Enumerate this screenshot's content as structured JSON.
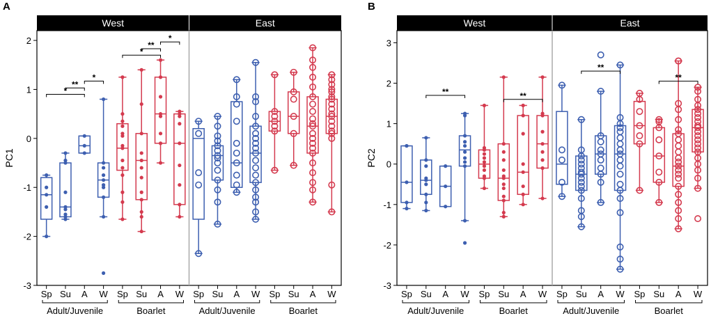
{
  "colors": {
    "blue": "#3d5fb0",
    "red": "#d43a4e",
    "header_bg": "#000000",
    "header_text": "#ffffff",
    "axis": "#000000",
    "divider": "#aaaaaa"
  },
  "chart_data": [
    {
      "type": "box",
      "panel_label": "A",
      "ylabel": "PC1",
      "ylim": [
        -3,
        2.2
      ],
      "yticks": [
        "2",
        "1",
        "0",
        "-1",
        "-2",
        "-3"
      ],
      "ytick_values": [
        2,
        1,
        0,
        -1,
        -2,
        -3
      ],
      "strip_labels": [
        "West",
        "East"
      ],
      "categories": [
        "Sp",
        "Su",
        "A",
        "W",
        "Sp",
        "Su",
        "A",
        "W",
        "Sp",
        "Su",
        "A",
        "W",
        "Sp",
        "Su",
        "A",
        "W"
      ],
      "group_labels": [
        "Adult/Juvenile",
        "Boarlet",
        "Adult/Juvenile",
        "Boarlet"
      ],
      "boxes": [
        {
          "region": "West",
          "age": "Adult/Juvenile",
          "season": "Sp",
          "color": "blue",
          "style": "filled",
          "min": -2.0,
          "q1": -1.65,
          "median": -1.15,
          "q3": -0.8,
          "max": -0.75,
          "points": [
            -0.75,
            -1.0,
            -1.15,
            -1.4,
            -2.0
          ]
        },
        {
          "region": "West",
          "age": "Adult/Juvenile",
          "season": "Su",
          "color": "blue",
          "style": "filled",
          "min": -1.65,
          "q1": -1.6,
          "median": -1.4,
          "q3": -0.5,
          "max": -0.3,
          "points": [
            -0.3,
            -0.45,
            -0.5,
            -1.1,
            -1.4,
            -1.45,
            -1.55,
            -1.6,
            -1.65
          ]
        },
        {
          "region": "West",
          "age": "Adult/Juvenile",
          "season": "A",
          "color": "blue",
          "style": "filled",
          "min": -0.3,
          "q1": -0.3,
          "median": -0.15,
          "q3": 0.05,
          "max": 0.05,
          "points": [
            0.05,
            -0.15,
            -0.3
          ]
        },
        {
          "region": "West",
          "age": "Adult/Juvenile",
          "season": "W",
          "color": "blue",
          "style": "filled",
          "min": -1.6,
          "q1": -1.2,
          "median": -0.85,
          "q3": -0.5,
          "max": 0.8,
          "points": [
            0.8,
            -0.5,
            -0.6,
            -0.75,
            -0.85,
            -0.95,
            -1.0,
            -1.2,
            -1.6,
            -2.75
          ]
        },
        {
          "region": "West",
          "age": "Boarlet",
          "season": "Sp",
          "color": "red",
          "style": "filled",
          "min": -1.65,
          "q1": -0.65,
          "median": -0.2,
          "q3": 0.3,
          "max": 1.25,
          "points": [
            1.25,
            0.5,
            0.35,
            0.25,
            0.1,
            0.05,
            -0.15,
            -0.2,
            -0.45,
            -0.6,
            -0.75,
            -1.1,
            -1.3,
            -1.65
          ]
        },
        {
          "region": "West",
          "age": "Boarlet",
          "season": "Su",
          "color": "red",
          "style": "filled",
          "min": -1.9,
          "q1": -1.25,
          "median": -0.45,
          "q3": 0.1,
          "max": 1.4,
          "points": [
            1.4,
            0.7,
            0.1,
            -0.3,
            -0.45,
            -0.6,
            -0.8,
            -1.1,
            -1.25,
            -1.5,
            -1.6,
            -1.9
          ]
        },
        {
          "region": "West",
          "age": "Boarlet",
          "season": "A",
          "color": "red",
          "style": "filled",
          "min": -0.5,
          "q1": -0.1,
          "median": 0.5,
          "q3": 1.25,
          "max": 1.6,
          "points": [
            1.6,
            1.25,
            0.85,
            0.5,
            0.45,
            0.1,
            -0.1,
            -0.5
          ]
        },
        {
          "region": "West",
          "age": "Boarlet",
          "season": "W",
          "color": "red",
          "style": "filled",
          "min": -1.6,
          "q1": -1.35,
          "median": -0.1,
          "q3": 0.5,
          "max": 0.55,
          "points": [
            0.55,
            0.5,
            0.45,
            0.3,
            -0.1,
            -0.55,
            -0.95,
            -1.35,
            -1.6
          ]
        },
        {
          "region": "East",
          "age": "Adult/Juvenile",
          "season": "Sp",
          "color": "blue",
          "style": "open",
          "min": -2.35,
          "q1": -1.65,
          "median": 0.0,
          "q3": 0.2,
          "max": 0.35,
          "points": [
            0.35,
            0.1,
            -0.7,
            -0.95,
            -2.35
          ]
        },
        {
          "region": "East",
          "age": "Adult/Juvenile",
          "season": "Su",
          "color": "blue",
          "style": "open",
          "min": -1.75,
          "q1": -0.85,
          "median": -0.35,
          "q3": -0.15,
          "max": 0.45,
          "points": [
            0.45,
            0.25,
            0.05,
            -0.05,
            -0.15,
            -0.25,
            -0.35,
            -0.4,
            -0.5,
            -0.65,
            -0.85,
            -1.05,
            -1.3,
            -1.75
          ]
        },
        {
          "region": "East",
          "age": "Adult/Juvenile",
          "season": "A",
          "color": "blue",
          "style": "open",
          "min": -1.1,
          "q1": -1.0,
          "median": -0.5,
          "q3": 0.75,
          "max": 1.2,
          "points": [
            1.2,
            0.85,
            0.7,
            0.35,
            -0.1,
            -0.3,
            -0.5,
            -0.75,
            -0.95,
            -1.1
          ]
        },
        {
          "region": "East",
          "age": "Adult/Juvenile",
          "season": "W",
          "color": "blue",
          "style": "open",
          "min": -1.65,
          "q1": -0.9,
          "median": -0.3,
          "q3": 0.25,
          "max": 1.55,
          "points": [
            1.55,
            0.85,
            0.75,
            0.45,
            0.25,
            0.1,
            0.0,
            -0.1,
            -0.2,
            -0.3,
            -0.45,
            -0.6,
            -0.75,
            -0.9,
            -1.05,
            -1.2,
            -1.3,
            -1.5,
            -1.65
          ]
        },
        {
          "region": "East",
          "age": "Boarlet",
          "season": "Sp",
          "color": "red",
          "style": "open",
          "min": -0.65,
          "q1": 0.15,
          "median": 0.35,
          "q3": 0.55,
          "max": 1.3,
          "points": [
            1.3,
            0.55,
            0.45,
            0.35,
            0.25,
            0.15,
            -0.65
          ]
        },
        {
          "region": "East",
          "age": "Boarlet",
          "season": "Su",
          "color": "red",
          "style": "open",
          "min": -0.55,
          "q1": 0.1,
          "median": 0.45,
          "q3": 0.95,
          "max": 1.35,
          "points": [
            1.35,
            0.95,
            0.8,
            0.45,
            0.1,
            -0.55
          ]
        },
        {
          "region": "East",
          "age": "Boarlet",
          "season": "A",
          "color": "red",
          "style": "open",
          "min": -1.3,
          "q1": -0.3,
          "median": 0.25,
          "q3": 0.85,
          "max": 1.85,
          "points": [
            1.85,
            1.6,
            1.45,
            1.25,
            1.05,
            0.85,
            0.7,
            0.55,
            0.4,
            0.3,
            0.25,
            0.1,
            0.0,
            -0.1,
            -0.2,
            -0.3,
            -0.5,
            -0.7,
            -0.9,
            -1.05,
            -1.3
          ]
        },
        {
          "region": "East",
          "age": "Boarlet",
          "season": "W",
          "color": "red",
          "style": "open",
          "min": -1.5,
          "q1": 0.1,
          "median": 0.45,
          "q3": 0.8,
          "max": 1.3,
          "points": [
            1.3,
            1.2,
            1.1,
            1.0,
            0.95,
            0.85,
            0.8,
            0.7,
            0.6,
            0.5,
            0.45,
            0.35,
            0.25,
            0.15,
            0.1,
            0.0,
            -0.95,
            -1.5
          ]
        }
      ],
      "significance": [
        {
          "from": 0,
          "to": 2,
          "y": 0.9,
          "label": "*"
        },
        {
          "from": 1,
          "to": 2,
          "y": 1.03,
          "label": "**"
        },
        {
          "from": 2,
          "to": 3,
          "y": 1.17,
          "label": "*"
        },
        {
          "from": 4,
          "to": 6,
          "y": 1.7,
          "label": "*"
        },
        {
          "from": 5,
          "to": 6,
          "y": 1.83,
          "label": "**"
        },
        {
          "from": 6,
          "to": 7,
          "y": 1.97,
          "label": "*"
        }
      ]
    },
    {
      "type": "box",
      "panel_label": "B",
      "ylabel": "PC2",
      "ylim": [
        -3,
        3.3
      ],
      "yticks": [
        "3",
        "2",
        "1",
        "0",
        "-1",
        "-2",
        "-3"
      ],
      "ytick_values": [
        3,
        2,
        1,
        0,
        -1,
        -2,
        -3
      ],
      "strip_labels": [
        "West",
        "East"
      ],
      "categories": [
        "Sp",
        "Su",
        "A",
        "W",
        "Sp",
        "Su",
        "A",
        "W",
        "Sp",
        "Su",
        "A",
        "W",
        "Sp",
        "Su",
        "A",
        "W"
      ],
      "group_labels": [
        "Adult/Juvenile",
        "Boarlet",
        "Adult/Juvenile",
        "Boarlet"
      ],
      "boxes": [
        {
          "region": "West",
          "age": "Adult/Juvenile",
          "season": "Sp",
          "color": "blue",
          "style": "filled",
          "min": -1.1,
          "q1": -0.95,
          "median": -0.45,
          "q3": 0.45,
          "max": 0.45,
          "points": [
            0.45,
            0.45,
            -0.45,
            -0.95,
            -1.1
          ]
        },
        {
          "region": "West",
          "age": "Adult/Juvenile",
          "season": "Su",
          "color": "blue",
          "style": "filled",
          "min": -1.15,
          "q1": -0.75,
          "median": -0.4,
          "q3": 0.1,
          "max": 0.65,
          "points": [
            0.65,
            0.1,
            -0.05,
            -0.35,
            -0.4,
            -0.5,
            -0.75,
            -0.95,
            -1.15
          ]
        },
        {
          "region": "West",
          "age": "Adult/Juvenile",
          "season": "A",
          "color": "blue",
          "style": "filled",
          "min": -1.05,
          "q1": -1.05,
          "median": -0.55,
          "q3": -0.05,
          "max": -0.05,
          "points": [
            -0.05,
            -0.55,
            -1.05
          ]
        },
        {
          "region": "West",
          "age": "Adult/Juvenile",
          "season": "W",
          "color": "blue",
          "style": "filled",
          "min": -1.4,
          "q1": -0.05,
          "median": 0.35,
          "q3": 0.7,
          "max": 1.25,
          "points": [
            1.25,
            1.2,
            0.7,
            0.55,
            0.45,
            0.3,
            0.15,
            0.05,
            -0.05,
            -1.4,
            -1.95
          ]
        },
        {
          "region": "West",
          "age": "Boarlet",
          "season": "Sp",
          "color": "red",
          "style": "filled",
          "min": -0.6,
          "q1": -0.35,
          "median": 0.0,
          "q3": 0.35,
          "max": 1.45,
          "points": [
            1.45,
            0.4,
            0.35,
            0.25,
            0.15,
            0.05,
            -0.05,
            -0.15,
            -0.3,
            -0.35,
            -0.6
          ]
        },
        {
          "region": "West",
          "age": "Boarlet",
          "season": "Su",
          "color": "red",
          "style": "filled",
          "min": -1.3,
          "q1": -0.9,
          "median": -0.35,
          "q3": 0.5,
          "max": 2.15,
          "points": [
            2.15,
            0.5,
            0.3,
            0.1,
            -0.15,
            -0.3,
            -0.35,
            -0.5,
            -0.6,
            -0.8,
            -0.9,
            -1.2,
            -1.3
          ]
        },
        {
          "region": "West",
          "age": "Boarlet",
          "season": "A",
          "color": "red",
          "style": "filled",
          "min": -1.0,
          "q1": -0.75,
          "median": -0.2,
          "q3": 1.2,
          "max": 1.45,
          "points": [
            1.45,
            1.2,
            0.75,
            0.0,
            -0.2,
            -0.55,
            -0.75,
            -1.0
          ]
        },
        {
          "region": "West",
          "age": "Boarlet",
          "season": "W",
          "color": "red",
          "style": "filled",
          "min": -0.85,
          "q1": -0.1,
          "median": 0.5,
          "q3": 1.2,
          "max": 2.15,
          "points": [
            2.15,
            1.25,
            1.2,
            0.8,
            0.5,
            0.3,
            0.1,
            -0.1,
            -0.85
          ]
        },
        {
          "region": "East",
          "age": "Adult/Juvenile",
          "season": "Sp",
          "color": "blue",
          "style": "open",
          "min": -0.8,
          "q1": -0.5,
          "median": 0.0,
          "q3": 1.3,
          "max": 1.95,
          "points": [
            1.95,
            0.35,
            0.1,
            -0.45,
            -0.8
          ]
        },
        {
          "region": "East",
          "age": "Adult/Juvenile",
          "season": "Su",
          "color": "blue",
          "style": "open",
          "min": -1.55,
          "q1": -0.65,
          "median": -0.25,
          "q3": 0.2,
          "max": 1.1,
          "points": [
            1.1,
            0.35,
            0.2,
            0.1,
            0.0,
            -0.1,
            -0.2,
            -0.25,
            -0.35,
            -0.45,
            -0.55,
            -0.65,
            -0.85,
            -1.15,
            -1.3,
            -1.55
          ]
        },
        {
          "region": "East",
          "age": "Adult/Juvenile",
          "season": "A",
          "color": "blue",
          "style": "open",
          "min": -0.95,
          "q1": -0.25,
          "median": 0.25,
          "q3": 0.7,
          "max": 1.8,
          "points": [
            2.7,
            1.8,
            0.7,
            0.55,
            0.35,
            0.25,
            0.1,
            -0.1,
            -0.25,
            -0.45,
            -0.95
          ]
        },
        {
          "region": "East",
          "age": "Adult/Juvenile",
          "season": "W",
          "color": "blue",
          "style": "open",
          "min": -2.6,
          "q1": -0.65,
          "median": 0.25,
          "q3": 0.95,
          "max": 2.45,
          "points": [
            2.45,
            1.15,
            1.0,
            0.9,
            0.8,
            0.65,
            0.5,
            0.35,
            0.25,
            0.1,
            -0.05,
            -0.25,
            -0.5,
            -0.65,
            -0.85,
            -1.2,
            -2.05,
            -2.35,
            -2.6
          ]
        },
        {
          "region": "East",
          "age": "Boarlet",
          "season": "Sp",
          "color": "red",
          "style": "open",
          "min": -0.65,
          "q1": 0.5,
          "median": 0.95,
          "q3": 1.55,
          "max": 1.75,
          "points": [
            1.75,
            1.6,
            1.3,
            0.95,
            0.7,
            0.5,
            -0.65
          ]
        },
        {
          "region": "East",
          "age": "Boarlet",
          "season": "Su",
          "color": "red",
          "style": "open",
          "min": -0.95,
          "q1": -0.45,
          "median": 0.2,
          "q3": 0.9,
          "max": 1.1,
          "points": [
            1.1,
            1.05,
            0.9,
            0.6,
            0.2,
            -0.2,
            -0.45,
            -0.95
          ]
        },
        {
          "region": "East",
          "age": "Boarlet",
          "season": "A",
          "color": "red",
          "style": "open",
          "min": -1.6,
          "q1": -0.55,
          "median": -0.05,
          "q3": 0.75,
          "max": 2.55,
          "points": [
            2.55,
            2.55,
            1.5,
            1.35,
            1.1,
            0.85,
            0.75,
            0.6,
            0.45,
            0.3,
            0.15,
            0.05,
            -0.05,
            -0.15,
            -0.25,
            -0.35,
            -0.55,
            -0.75,
            -0.95,
            -1.15,
            -1.35,
            -1.6
          ]
        },
        {
          "region": "East",
          "age": "Boarlet",
          "season": "W",
          "color": "red",
          "style": "open",
          "min": -0.6,
          "q1": 0.3,
          "median": 0.9,
          "q3": 1.35,
          "max": 1.9,
          "points": [
            1.9,
            1.8,
            1.6,
            1.45,
            1.35,
            1.25,
            1.15,
            1.05,
            0.95,
            0.9,
            0.8,
            0.7,
            0.6,
            0.5,
            0.4,
            0.3,
            0.15,
            0.0,
            -0.15,
            -0.35,
            -0.6,
            -1.35
          ]
        }
      ],
      "significance": [
        {
          "from": 1,
          "to": 3,
          "y": 1.7,
          "label": "**"
        },
        {
          "from": 5,
          "to": 7,
          "y": 1.6,
          "label": "**"
        },
        {
          "from": 9,
          "to": 11,
          "y": 2.3,
          "label": "**"
        },
        {
          "from": 13,
          "to": 15,
          "y": 2.05,
          "label": "**"
        }
      ]
    }
  ]
}
